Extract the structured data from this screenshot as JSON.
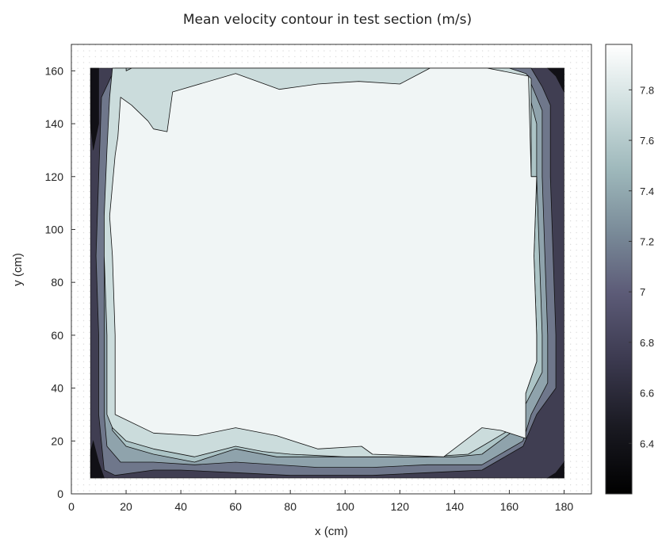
{
  "chart_data": {
    "type": "contour",
    "title": "Mean velocity contour in test section (m/s)",
    "xlabel": "x (cm)",
    "ylabel": "y (cm)",
    "xlim": [
      0,
      190
    ],
    "ylim": [
      0,
      170
    ],
    "x_ticks": [
      0,
      20,
      40,
      60,
      80,
      100,
      120,
      140,
      160,
      180
    ],
    "y_ticks": [
      0,
      20,
      40,
      60,
      80,
      100,
      120,
      140,
      160
    ],
    "grid": true,
    "colorbar": {
      "range": [
        6.2,
        7.98
      ],
      "ticks": [
        "6.4",
        "6.6",
        "6.8",
        "7",
        "7.2",
        "7.4",
        "7.6",
        "7.8"
      ],
      "tick_values": [
        6.4,
        6.6,
        6.8,
        7.0,
        7.2,
        7.4,
        7.6,
        7.8
      ]
    },
    "data_extent": {
      "x": [
        7,
        180
      ],
      "y": [
        6,
        161
      ]
    },
    "levels": [
      {
        "value": 7.0,
        "polygon": [
          [
            16,
            161
          ],
          [
            32,
            161
          ],
          [
            38,
            161
          ],
          [
            168,
            161
          ],
          [
            172,
            154
          ],
          [
            175,
            147
          ],
          [
            175,
            120
          ],
          [
            176,
            90
          ],
          [
            177,
            60
          ],
          [
            177,
            40
          ],
          [
            170,
            30
          ],
          [
            165,
            18
          ],
          [
            150,
            9
          ],
          [
            130,
            8
          ],
          [
            110,
            7
          ],
          [
            80,
            7
          ],
          [
            60,
            8
          ],
          [
            40,
            9
          ],
          [
            30,
            9
          ],
          [
            16,
            7
          ],
          [
            12,
            9
          ],
          [
            10,
            30
          ],
          [
            10,
            60
          ],
          [
            9,
            90
          ],
          [
            10,
            120
          ],
          [
            11,
            150
          ]
        ]
      },
      {
        "value": 7.2,
        "polygon": [
          [
            16,
            161
          ],
          [
            28,
            161
          ],
          [
            32,
            160
          ],
          [
            36,
            161
          ],
          [
            150,
            161
          ],
          [
            160,
            160
          ],
          [
            168,
            155
          ],
          [
            172,
            145
          ],
          [
            172,
            120
          ],
          [
            173,
            90
          ],
          [
            174,
            60
          ],
          [
            174,
            42
          ],
          [
            168,
            30
          ],
          [
            165,
            20
          ],
          [
            150,
            11
          ],
          [
            130,
            11
          ],
          [
            110,
            10
          ],
          [
            90,
            10
          ],
          [
            60,
            12
          ],
          [
            45,
            11
          ],
          [
            30,
            12
          ],
          [
            18,
            12
          ],
          [
            13,
            18
          ],
          [
            12,
            30
          ],
          [
            12,
            60
          ],
          [
            12,
            90
          ],
          [
            13,
            120
          ],
          [
            14,
            150
          ]
        ]
      },
      {
        "value": 7.4,
        "polygon": [
          [
            20,
            161
          ],
          [
            28,
            161
          ],
          [
            32,
            160
          ],
          [
            36,
            161
          ],
          [
            120,
            161
          ],
          [
            150,
            161
          ],
          [
            162,
            158
          ],
          [
            167,
            152
          ],
          [
            170,
            140
          ],
          [
            170,
            120
          ],
          [
            171,
            90
          ],
          [
            172,
            60
          ],
          [
            172,
            46
          ],
          [
            166,
            34
          ],
          [
            163,
            25
          ],
          [
            150,
            15
          ],
          [
            140,
            14
          ],
          [
            110,
            14
          ],
          [
            90,
            14
          ],
          [
            75,
            14
          ],
          [
            60,
            17
          ],
          [
            45,
            12
          ],
          [
            30,
            15
          ],
          [
            20,
            18
          ],
          [
            15,
            24
          ],
          [
            14,
            40
          ],
          [
            14,
            70
          ],
          [
            14,
            100
          ],
          [
            15,
            130
          ],
          [
            18,
            150
          ]
        ]
      },
      {
        "value": 7.6,
        "polygon": [
          [
            15,
            161
          ],
          [
            20,
            161
          ],
          [
            20,
            160
          ],
          [
            22,
            161
          ],
          [
            131,
            161
          ],
          [
            135,
            161
          ],
          [
            140,
            161
          ],
          [
            145,
            161
          ],
          [
            160,
            161
          ],
          [
            163,
            160
          ],
          [
            166,
            159
          ],
          [
            168,
            157
          ],
          [
            168,
            120
          ],
          [
            170,
            120
          ],
          [
            169,
            90
          ],
          [
            170,
            60
          ],
          [
            170,
            50
          ],
          [
            166,
            38
          ],
          [
            163,
            26
          ],
          [
            150,
            18
          ],
          [
            145,
            15
          ],
          [
            130,
            14
          ],
          [
            110,
            14
          ],
          [
            100,
            14
          ],
          [
            80,
            15
          ],
          [
            70,
            16
          ],
          [
            60,
            18
          ],
          [
            45,
            14
          ],
          [
            30,
            17
          ],
          [
            20,
            20
          ],
          [
            15,
            25
          ],
          [
            13,
            30
          ],
          [
            13,
            60
          ],
          [
            12,
            90
          ],
          [
            12,
            105
          ],
          [
            13,
            130
          ],
          [
            14,
            150
          ],
          [
            15,
            161
          ]
        ]
      },
      {
        "value": 7.8,
        "polygon": [
          [
            18,
            150
          ],
          [
            22,
            147
          ],
          [
            28,
            141
          ],
          [
            30,
            138
          ],
          [
            35,
            137
          ],
          [
            37,
            152
          ],
          [
            60,
            159
          ],
          [
            76,
            153
          ],
          [
            90,
            155
          ],
          [
            105,
            156
          ],
          [
            120,
            155
          ],
          [
            131,
            161
          ],
          [
            145,
            161
          ],
          [
            152,
            161
          ],
          [
            167,
            158
          ],
          [
            168,
            120
          ],
          [
            170,
            120
          ],
          [
            169,
            90
          ],
          [
            170,
            60
          ],
          [
            170,
            50
          ],
          [
            166,
            38
          ],
          [
            166,
            21
          ],
          [
            157,
            24
          ],
          [
            150,
            25
          ],
          [
            136,
            14
          ],
          [
            110,
            15
          ],
          [
            106,
            18
          ],
          [
            90,
            17
          ],
          [
            75,
            22
          ],
          [
            60,
            25
          ],
          [
            46,
            22
          ],
          [
            30,
            23
          ],
          [
            16,
            30
          ],
          [
            16,
            60
          ],
          [
            15,
            90
          ],
          [
            14,
            105
          ],
          [
            16,
            128
          ],
          [
            17,
            135
          ]
        ]
      }
    ]
  }
}
